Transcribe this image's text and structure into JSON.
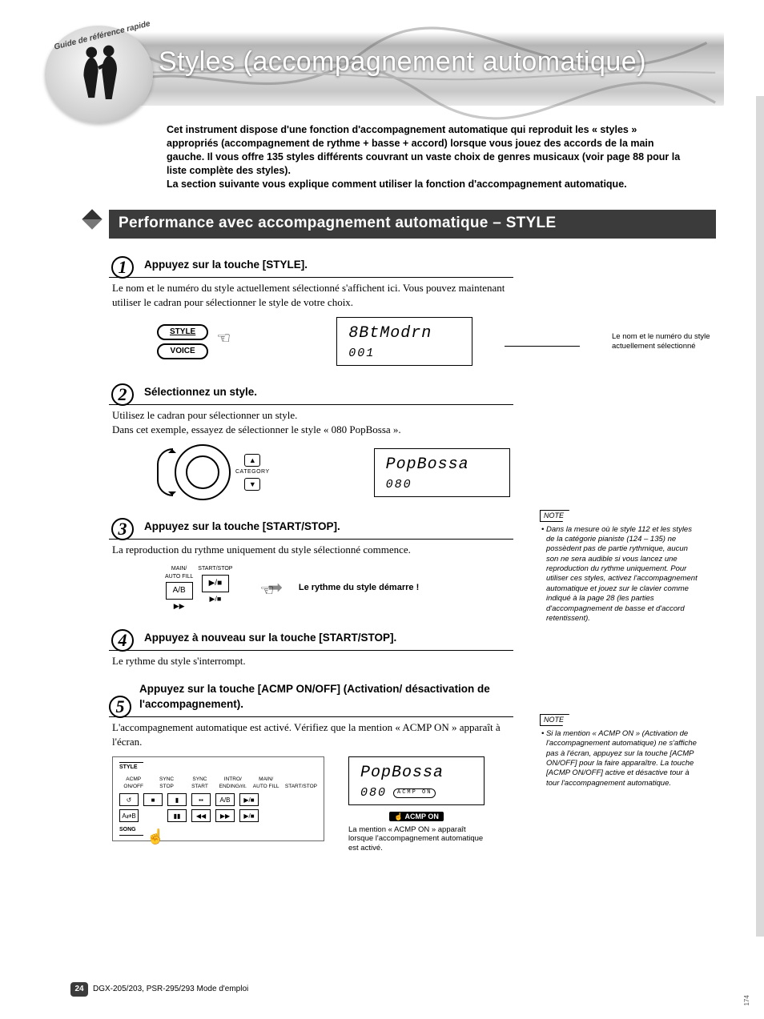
{
  "header": {
    "ref_arc": "Guide de référence rapide",
    "title": "Styles (accompagnement automatique)"
  },
  "intro": "Cet instrument dispose d'une fonction d'accompagnement automatique qui reproduit les « styles » appropriés (accompagnement de rythme + basse + accord) lorsque vous jouez des accords de la main gauche. Il vous offre 135 styles différents couvrant un vaste choix de genres musicaux (voir page 88 pour la liste complète des styles).\nLa section suivante vous explique comment utiliser la fonction d'accompagnement automatique.",
  "section_title": "Performance avec accompagnement automatique – STYLE",
  "steps": {
    "s1": {
      "num": "1",
      "title": "Appuyez sur la touche [STYLE].",
      "body": "Le nom et le numéro du style actuellement sélectionné s'affichent ici. Vous pouvez maintenant utiliser le cadran pour sélectionner le style de votre choix.",
      "btn_top": "STYLE",
      "btn_bot": "VOICE",
      "lcd_big": "8BtModrn",
      "lcd_small": "001",
      "caption": "Le nom et le numéro du style actuellement sélectionné"
    },
    "s2": {
      "num": "2",
      "title": "Sélectionnez un style.",
      "body1": "Utilisez le cadran pour sélectionner un style.",
      "body2": "Dans cet exemple, essayez de sélectionner le style « 080 PopBossa ».",
      "cat": "CATEGORY",
      "lcd_big": "PopBossa",
      "lcd_small": "080"
    },
    "s3": {
      "num": "3",
      "title": "Appuyez sur la touche [START/STOP].",
      "body": "La reproduction du rythme uniquement du style sélectionné commence.",
      "lab_main": "MAIN/\nAUTO FILL",
      "lab_ss": "START/STOP",
      "btn_ab": "A/B",
      "btn_play": "▶/■",
      "arrow_caption": "Le rythme du style démarre !"
    },
    "s4": {
      "num": "4",
      "title": "Appuyez à nouveau sur la touche [START/STOP].",
      "body": "Le rythme du style s'interrompt."
    },
    "s5": {
      "num": "5",
      "title": "Appuyez sur la touche [ACMP ON/OFF] (Activation/ désactivation de l'accompagnement).",
      "body": "L'accompagnement automatique est activé. Vérifiez que la mention « ACMP ON » apparaît à l'écran.",
      "panel_top_style": "STYLE",
      "panel_bot_song": "SONG",
      "panel_labels": [
        "ACMP\nON/OFF",
        "SYNC\nSTOP",
        "SYNC\nSTART",
        "INTRO/\nENDING/rit.",
        "MAIN/\nAUTO FILL",
        "START/STOP"
      ],
      "panel_btns": [
        "↺",
        "■",
        "▮",
        "▪▪",
        "A/B",
        "▶/■"
      ],
      "panel_btns2": [
        "A⇄B",
        "",
        "▮▮",
        "◀◀",
        "▶▶",
        "▶/■"
      ],
      "lcd_big": "PopBossa",
      "lcd_small": "080",
      "acmp_pill": "ACMP ON",
      "acmp_hand": "☝ ACMP ON",
      "lcd_caption": "La mention « ACMP ON » apparaît lorsque l'accompagnement automatique est activé."
    }
  },
  "notes": {
    "n1": {
      "label": "NOTE",
      "body": "Dans la mesure où le style 112 et les styles de la catégorie pianiste (124 – 135) ne possèdent pas de partie rythmique, aucun son ne sera audible si vous lancez une reproduction du rythme uniquement. Pour utiliser ces styles, activez l'accompagnement automatique et jouez sur le clavier comme indiqué à la page 28 (les parties d'accompagnement de basse et d'accord retentissent)."
    },
    "n2": {
      "label": "NOTE",
      "body": "Si la mention « ACMP ON » (Activation de l'accompagnement automatique) ne s'affiche pas à l'écran, appuyez sur la touche [ACMP ON/OFF] pour la faire apparaître. La touche [ACMP ON/OFF] active et désactive tour à tour l'accompagnement automatique."
    }
  },
  "footer": {
    "page": "24",
    "text": "DGX-205/203, PSR-295/293  Mode d'emploi",
    "side": "174"
  },
  "colors": {
    "section_bg": "#3b3b3b",
    "sidebar": "#d9d9d9"
  }
}
